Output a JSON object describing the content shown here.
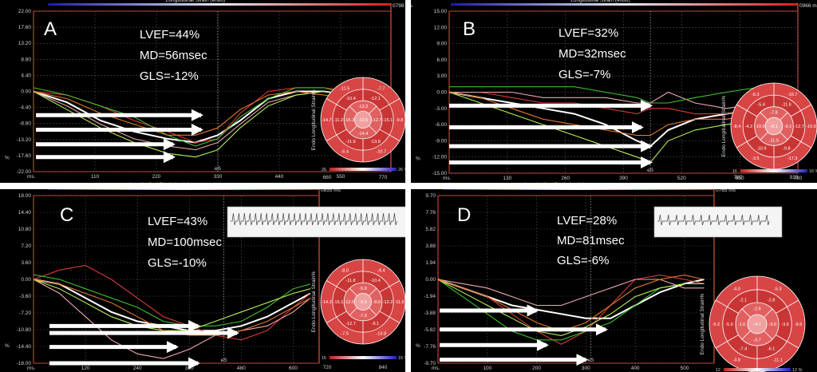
{
  "colors": {
    "background": "#000000",
    "grid": "#4a4a4a",
    "axis_text": "#cfcfcf",
    "label_text": "#ffffff",
    "frame": "#e0513a",
    "gradient_left": "#1a1aa8",
    "gradient_right": "#d02020",
    "bullseye_base": "#d23a3a",
    "arrow": "#ffffff"
  },
  "header_title": "Longitudinal Strain (endo)",
  "bullseye_caption": "Endo Longitudinal Strain%",
  "chart_data": [
    {
      "type": "line",
      "panel_letter": "A",
      "stats": [
        "LVEF=44%",
        "MD=56msec",
        "GLS=-12%"
      ],
      "time_label": "0798 ms",
      "x_unit": "ms.",
      "y_unit": "%",
      "x_ticks": [
        "110",
        "220",
        "330",
        "440",
        "550"
      ],
      "xlim": [
        0,
        640
      ],
      "y_ticks": [
        "22.00",
        "17.60",
        "13.20",
        "8.80",
        "4.40",
        "0.00",
        "-4.40",
        "-8.80",
        "-13.20",
        "-17.60",
        "-22.00"
      ],
      "ylim": [
        -22,
        22
      ],
      "es_label": "eS",
      "es_x": 330,
      "series": [
        {
          "color": "#ffffff",
          "x": [
            0,
            60,
            120,
            180,
            240,
            290,
            330,
            370,
            420,
            470,
            520,
            570,
            600
          ],
          "y": [
            0,
            -3,
            -8,
            -11,
            -13,
            -14,
            -12,
            -8,
            -2,
            0,
            0,
            -1,
            -2
          ]
        },
        {
          "color": "#d83a3a",
          "x": [
            0,
            60,
            120,
            180,
            240,
            290,
            330,
            370,
            420,
            470,
            520,
            570,
            600
          ],
          "y": [
            0,
            -1,
            -4,
            -8,
            -11,
            -14,
            -13,
            -6,
            0,
            1,
            1,
            0,
            -1
          ]
        },
        {
          "color": "#f0a6b0",
          "x": [
            0,
            60,
            120,
            180,
            240,
            290,
            330,
            370,
            420,
            470,
            520,
            570,
            600
          ],
          "y": [
            0,
            -4,
            -9,
            -13,
            -15,
            -16,
            -14,
            -9,
            -3,
            -1,
            0,
            -1,
            -2
          ]
        },
        {
          "color": "#3fbf2f",
          "x": [
            0,
            60,
            120,
            180,
            240,
            290,
            330,
            370,
            420,
            470,
            520,
            570,
            600
          ],
          "y": [
            1,
            -1,
            -4,
            -7,
            -12,
            -15,
            -13,
            -7,
            -2,
            1,
            1,
            -1,
            -2
          ]
        },
        {
          "color": "#b6ef5a",
          "x": [
            0,
            60,
            120,
            180,
            240,
            290,
            330,
            370,
            420,
            470,
            520,
            570,
            600
          ],
          "y": [
            0,
            -5,
            -10,
            -14,
            -17,
            -18,
            -16,
            -10,
            -4,
            -1,
            0,
            -1,
            -3
          ]
        },
        {
          "color": "#e07a2a",
          "x": [
            0,
            60,
            120,
            180,
            240,
            290,
            330,
            370,
            420,
            470,
            520,
            570,
            600
          ],
          "y": [
            0,
            -2,
            -6,
            -9,
            -12,
            -12,
            -10,
            -5,
            -1,
            0,
            -1,
            -2,
            -3
          ]
        }
      ],
      "arrows_y": [
        -6.5,
        -10.5,
        -14.5,
        -18.0
      ],
      "arrows_end_x": [
        300,
        300,
        250,
        250
      ],
      "bullseye": {
        "center_value": "-12.6",
        "ring_outer": [
          "-7.7",
          "-9.8",
          "-10.7",
          "-6.4",
          "-14.7",
          "-11.5"
        ],
        "ring_mid": [
          "-12.1",
          "-15.1",
          "-13.8",
          "-11.9",
          "-11.2",
          "-10.4"
        ],
        "ring_inner": [
          "-13.2",
          "-12.7",
          "-14.4",
          "-15.3"
        ],
        "scale_left": "26",
        "scale_right": "26 %",
        "axis_left": "660",
        "axis_right": "770"
      }
    },
    {
      "type": "line",
      "panel_letter": "B",
      "stats": [
        "LVEF=32%",
        "MD=32msec",
        "GLS=-7%"
      ],
      "time_label": "0966 ms",
      "x_unit": "ms.",
      "y_unit": "%",
      "x_ticks": [
        "130",
        "260",
        "390",
        "520",
        "650",
        "780"
      ],
      "xlim": [
        0,
        780
      ],
      "y_ticks": [
        "15.00",
        "12.00",
        "9.00",
        "6.00",
        "3.00",
        "0.00",
        "-3.00",
        "-6.00",
        "-9.00",
        "-12.00",
        "-15.00"
      ],
      "ylim": [
        -15,
        15
      ],
      "es_label": "eS",
      "es_x": 450,
      "series": [
        {
          "color": "#ffffff",
          "x": [
            0,
            70,
            140,
            210,
            280,
            350,
            420,
            450,
            490,
            550,
            620,
            700,
            760
          ],
          "y": [
            0,
            -1,
            -2,
            -3,
            -4,
            -6,
            -9,
            -10,
            -7,
            -5,
            -4,
            -3,
            -3
          ]
        },
        {
          "color": "#d83a3a",
          "x": [
            0,
            70,
            140,
            210,
            280,
            350,
            420,
            450,
            490,
            550,
            620,
            700,
            760
          ],
          "y": [
            0,
            0,
            -1,
            -2,
            -2,
            -3,
            -4,
            -3,
            -3,
            -4,
            -4,
            -3,
            -2
          ]
        },
        {
          "color": "#f0a6b0",
          "x": [
            0,
            70,
            140,
            210,
            280,
            350,
            420,
            450,
            490,
            550,
            620,
            700,
            760
          ],
          "y": [
            0,
            0,
            0,
            -1,
            -1,
            -1,
            -2,
            -2,
            0,
            -2,
            -3,
            -2,
            -1
          ]
        },
        {
          "color": "#3fbf2f",
          "x": [
            0,
            70,
            140,
            210,
            280,
            350,
            420,
            450,
            490,
            550,
            620,
            700,
            760
          ],
          "y": [
            1,
            1,
            1,
            1,
            1,
            0,
            -1,
            -2,
            -2,
            -1,
            0,
            1,
            1
          ]
        },
        {
          "color": "#b6ef5a",
          "x": [
            0,
            70,
            140,
            210,
            280,
            350,
            420,
            450,
            490,
            550,
            620,
            700,
            760
          ],
          "y": [
            0,
            -2,
            -4,
            -6,
            -8,
            -10,
            -12,
            -13,
            -9,
            -7,
            -6,
            -5,
            -4
          ]
        },
        {
          "color": "#e07a2a",
          "x": [
            0,
            70,
            140,
            210,
            280,
            350,
            420,
            450,
            490,
            550,
            620,
            700,
            760
          ],
          "y": [
            0,
            -1,
            -3,
            -5,
            -6,
            -7,
            -8,
            -8,
            -6,
            -5,
            -5,
            -4,
            -4
          ]
        }
      ],
      "arrows_y": [
        -2.5,
        -6.5,
        -10.0,
        -13.0
      ],
      "arrows_end_x": [
        450,
        430,
        450,
        450
      ],
      "bullseye": {
        "center_value": "-8.1",
        "ring_outer": [
          "-15.7",
          "-10.9",
          "-17.3",
          "-3.5",
          "-8.4",
          "-6.3"
        ],
        "ring_mid": [
          "-11.6",
          "-12.7",
          "-9.8",
          "-10.9",
          "-4.2",
          "-5.4"
        ],
        "ring_inner": [
          "-7.8",
          "-9.1",
          "-11.5",
          "-10.9"
        ],
        "scale_left": "16",
        "scale_right": "16 %",
        "axis_left": "780",
        "axis_right": "910"
      }
    },
    {
      "type": "line",
      "panel_letter": "C",
      "stats": [
        "LVEF=43%",
        "MD=100msec",
        "GLS=-10%"
      ],
      "time_label": "0855 ms",
      "x_unit": "ms.",
      "y_unit": "%",
      "x_ticks": [
        "120",
        "240",
        "360",
        "480",
        "600"
      ],
      "xlim": [
        0,
        660
      ],
      "y_ticks": [
        "18.00",
        "14.40",
        "10.80",
        "7.20",
        "3.60",
        "0.00",
        "-3.60",
        "-7.20",
        "-10.80",
        "-14.40",
        "-18.00"
      ],
      "ylim": [
        -18,
        18
      ],
      "es_label": "eS",
      "es_x": 440,
      "series": [
        {
          "color": "#ffffff",
          "x": [
            0,
            60,
            120,
            180,
            240,
            300,
            360,
            420,
            480,
            540,
            600,
            640
          ],
          "y": [
            0,
            -1,
            -4,
            -7,
            -9,
            -10,
            -11,
            -11,
            -10,
            -8,
            -5,
            -3
          ]
        },
        {
          "color": "#d83a3a",
          "x": [
            0,
            60,
            120,
            180,
            240,
            300,
            360,
            420,
            480,
            540,
            600,
            640
          ],
          "y": [
            0,
            2,
            3,
            0,
            -4,
            -8,
            -10,
            -12,
            -13,
            -11,
            -6,
            -3
          ]
        },
        {
          "color": "#f0a6b0",
          "x": [
            0,
            60,
            120,
            180,
            240,
            300,
            360,
            420,
            480,
            540,
            600,
            640
          ],
          "y": [
            0,
            -3,
            -8,
            -13,
            -16,
            -17,
            -15,
            -12,
            -11,
            -10,
            -7,
            -4
          ]
        },
        {
          "color": "#3fbf2f",
          "x": [
            0,
            60,
            120,
            180,
            240,
            300,
            360,
            420,
            480,
            540,
            600,
            640
          ],
          "y": [
            1,
            0,
            -2,
            -4,
            -6,
            -9,
            -10,
            -10,
            -9,
            -6,
            -2,
            -1
          ]
        },
        {
          "color": "#b6ef5a",
          "x": [
            0,
            60,
            120,
            180,
            240,
            300,
            360,
            420,
            480,
            540,
            600,
            640
          ],
          "y": [
            0,
            -2,
            -5,
            -8,
            -10,
            -11,
            -11,
            -9,
            -7,
            -5,
            -3,
            -2
          ]
        },
        {
          "color": "#e07a2a",
          "x": [
            0,
            60,
            120,
            180,
            240,
            300,
            360,
            420,
            480,
            540,
            600,
            640
          ],
          "y": [
            0,
            -1,
            -3,
            -5,
            -8,
            -11,
            -12,
            -12,
            -11,
            -9,
            -6,
            -4
          ]
        }
      ],
      "arrows_y": [
        -10.0,
        -11.5,
        -14.5,
        -18.0
      ],
      "arrows_end_x": [
        380,
        470,
        330,
        380
      ],
      "bullseye": {
        "center_value": "-9.3",
        "ring_outer": [
          "-9.4",
          "-11.6",
          "-13.8",
          "-7.5",
          "-14.3",
          "-8.0"
        ],
        "ring_mid": [
          "-10.4",
          "-12.2",
          "-6.1",
          "-12.7",
          "-15.1",
          "-11.8"
        ],
        "ring_inner": [
          "-5.9",
          "-8.6",
          "-7.3",
          "-12.0"
        ],
        "scale_left": "15",
        "scale_right": "15 %",
        "axis_left": "720",
        "axis_right": "840"
      }
    },
    {
      "type": "line",
      "panel_letter": "D",
      "stats": [
        "LVEF=28%",
        "MD=81msec",
        "GLS=-6%"
      ],
      "time_label": "0765 ms",
      "x_unit": "ms.",
      "y_unit": "%",
      "x_ticks": [
        "100",
        "200",
        "300",
        "400",
        "500"
      ],
      "xlim": [
        0,
        560
      ],
      "y_ticks": [
        "9.70",
        "7.76",
        "5.82",
        "3.88",
        "1.94",
        "0.00",
        "-1.94",
        "-3.88",
        "-5.82",
        "-7.76",
        "-9.70"
      ],
      "ylim": [
        -9.7,
        9.7
      ],
      "es_label": "eS",
      "es_x": 310,
      "series": [
        {
          "color": "#ffffff",
          "x": [
            0,
            50,
            100,
            150,
            200,
            250,
            300,
            350,
            400,
            450,
            500,
            540
          ],
          "y": [
            0,
            -1,
            -2,
            -3,
            -3.5,
            -4,
            -4.5,
            -4.5,
            -3,
            -1.5,
            -0.5,
            0
          ]
        },
        {
          "color": "#d83a3a",
          "x": [
            0,
            50,
            100,
            150,
            200,
            250,
            300,
            350,
            400,
            450,
            500,
            540
          ],
          "y": [
            0,
            -1,
            -2,
            -4,
            -6,
            -7.5,
            -6,
            -3,
            0,
            0.5,
            0,
            -0.5
          ]
        },
        {
          "color": "#f0a6b0",
          "x": [
            0,
            50,
            100,
            150,
            200,
            250,
            300,
            350,
            400,
            450,
            500,
            540
          ],
          "y": [
            0,
            -0.5,
            -1,
            -2,
            -3,
            -3,
            -2,
            -1,
            0,
            0,
            -1,
            -1
          ]
        },
        {
          "color": "#3fbf2f",
          "x": [
            0,
            50,
            100,
            150,
            200,
            250,
            300,
            350,
            400,
            450,
            500,
            540
          ],
          "y": [
            0,
            -2,
            -4,
            -6,
            -7,
            -7,
            -6,
            -5,
            -3,
            -1,
            -0.5,
            -0.5
          ]
        },
        {
          "color": "#b6ef5a",
          "x": [
            0,
            50,
            100,
            150,
            200,
            250,
            300,
            350,
            400,
            450,
            500,
            540
          ],
          "y": [
            0,
            -1.5,
            -3,
            -4.5,
            -6,
            -6.5,
            -5.5,
            -4,
            -2,
            -1,
            -0.5,
            -0.5
          ]
        },
        {
          "color": "#e07a2a",
          "x": [
            0,
            50,
            100,
            150,
            200,
            250,
            300,
            350,
            400,
            450,
            500,
            540
          ],
          "y": [
            0,
            -1,
            -2,
            -3.5,
            -5,
            -6,
            -5,
            -3,
            -1,
            0,
            0.5,
            0
          ]
        }
      ],
      "arrows_y": [
        -3.6,
        -5.8,
        -7.6,
        -9.3
      ],
      "arrows_end_x": [
        200,
        340,
        220,
        300
      ],
      "bullseye": {
        "center_value": "-4.7",
        "ring_outer": [
          "-5.3",
          "-9.6",
          "-11.1",
          "-3.8",
          "-5.2",
          "-4.0"
        ],
        "ring_mid": [
          "-2.8",
          "-3.6",
          "-6.1",
          "-7.4",
          "-5.9",
          "-2.1"
        ],
        "ring_inner": [
          "-2.6",
          "-5.0",
          "-3.7",
          "-1.6"
        ],
        "scale_left": "12",
        "scale_right": "12 %",
        "axis_left": "",
        "axis_right": ""
      }
    }
  ]
}
